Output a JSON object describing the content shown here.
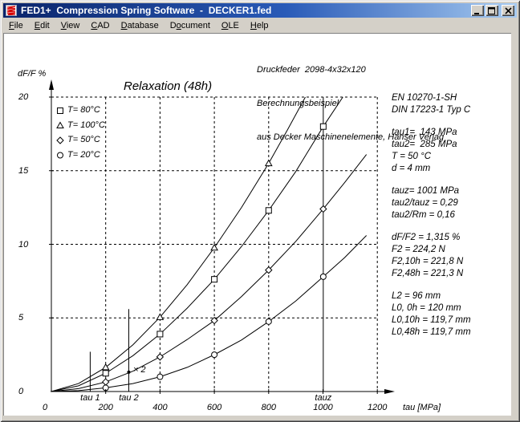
{
  "window": {
    "title": "FED1+  Compression Spring Software  -  DECKER1.fed",
    "icon": "spring-icon",
    "controls": {
      "minimize": "minimize",
      "maximize": "maximize",
      "close": "close"
    }
  },
  "menu": {
    "items": [
      {
        "label": "File",
        "underline": 0
      },
      {
        "label": "Edit",
        "underline": 0
      },
      {
        "label": "View",
        "underline": 0
      },
      {
        "label": "CAD",
        "underline": 0
      },
      {
        "label": "Database",
        "underline": 0
      },
      {
        "label": "Document",
        "underline": 1
      },
      {
        "label": "OLE",
        "underline": 0
      },
      {
        "label": "Help",
        "underline": 0
      }
    ]
  },
  "annotation": {
    "lines": [
      "Druckfeder  2098-4x32x120",
      "Berechnungsbeispiel",
      "aus Decker Maschinenelemente, Hanser Verlag"
    ]
  },
  "info_panel": {
    "groups": [
      [
        "EN 10270-1-SH",
        "DIN 17223-1 Typ C"
      ],
      [
        "tau1=  143 MPa",
        "tau2=  285 MPa",
        "T = 50 °C",
        "d = 4 mm"
      ],
      [
        "tauz= 1001 MPa",
        "tau2/tauz = 0,29",
        "tau2/Rm = 0,16"
      ],
      [
        "dF/F2 = 1,315 %",
        "F2 = 224,2 N",
        "F2,10h = 221,8 N",
        "F2,48h = 221,3 N"
      ],
      [
        "L2 = 96 mm",
        "L0, 0h = 120 mm",
        "L0,10h = 119,7 mm",
        "L0,48h = 119,7 mm"
      ]
    ]
  },
  "chart_data": {
    "type": "line",
    "title": "Relaxation (48h)",
    "xlabel": "tau [MPa]",
    "ylabel": "dF/F %",
    "xlim": [
      0,
      1215
    ],
    "ylim": [
      0,
      20
    ],
    "x_ticks": [
      0,
      200,
      400,
      600,
      800,
      1000,
      1200
    ],
    "y_ticks": [
      0,
      5,
      10,
      15,
      20
    ],
    "grid": "dashed",
    "legend_position": "top-left",
    "series": [
      {
        "name": "T= 80°C",
        "marker": "square",
        "points": [
          [
            0,
            0
          ],
          [
            100,
            0.39
          ],
          [
            200,
            1.24
          ],
          [
            300,
            2.43
          ],
          [
            400,
            3.9
          ],
          [
            500,
            5.66
          ],
          [
            600,
            7.62
          ],
          [
            700,
            9.85
          ],
          [
            800,
            12.3
          ],
          [
            900,
            14.95
          ],
          [
            1001,
            18.0
          ],
          [
            1073,
            20.0
          ]
        ],
        "marker_x": [
          200,
          400,
          600,
          800,
          1001
        ]
      },
      {
        "name": "T= 100°C",
        "marker": "triangle",
        "points": [
          [
            0,
            0
          ],
          [
            100,
            0.54
          ],
          [
            200,
            1.64
          ],
          [
            300,
            3.17
          ],
          [
            400,
            5.05
          ],
          [
            500,
            7.26
          ],
          [
            600,
            9.77
          ],
          [
            700,
            12.5
          ],
          [
            800,
            15.5
          ],
          [
            870,
            17.8
          ],
          [
            935,
            20.0
          ]
        ],
        "marker_x": [
          200,
          400,
          600,
          800
        ]
      },
      {
        "name": "T= 50°C",
        "marker": "diamond",
        "points": [
          [
            0,
            0
          ],
          [
            100,
            0.2
          ],
          [
            200,
            0.65
          ],
          [
            300,
            1.38
          ],
          [
            400,
            2.35
          ],
          [
            500,
            3.53
          ],
          [
            600,
            4.82
          ],
          [
            700,
            6.45
          ],
          [
            800,
            8.25
          ],
          [
            900,
            10.2
          ],
          [
            1001,
            12.4
          ],
          [
            1080,
            14.2
          ],
          [
            1160,
            16.1
          ]
        ],
        "marker_x": [
          200,
          400,
          600,
          800,
          1001
        ]
      },
      {
        "name": "T= 20°C",
        "marker": "circle",
        "points": [
          [
            0,
            0
          ],
          [
            100,
            0.06
          ],
          [
            200,
            0.25
          ],
          [
            300,
            0.54
          ],
          [
            400,
            1.0
          ],
          [
            500,
            1.64
          ],
          [
            600,
            2.5
          ],
          [
            700,
            3.5
          ],
          [
            800,
            4.75
          ],
          [
            900,
            6.15
          ],
          [
            1001,
            7.8
          ],
          [
            1080,
            9.1
          ],
          [
            1160,
            10.6
          ]
        ],
        "marker_x": [
          200,
          400,
          600,
          800,
          1001
        ]
      }
    ],
    "vlines": [
      {
        "x": 143,
        "y_top": 2.7,
        "label": "tau 1"
      },
      {
        "x": 285,
        "y_top": 5.6,
        "label": "tau 2"
      },
      {
        "x": 1001,
        "y_top": 20,
        "label": "tauz"
      }
    ],
    "working_point": {
      "x": 285,
      "y": 1.315,
      "label": "× 2"
    }
  }
}
